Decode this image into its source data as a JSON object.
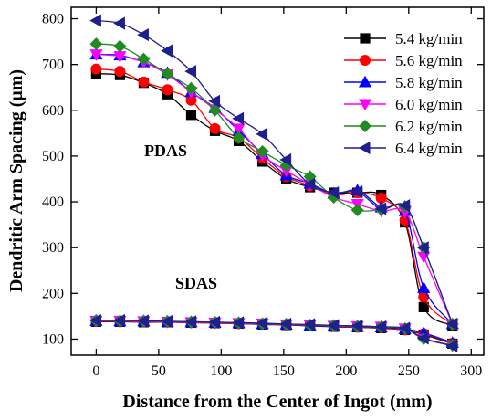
{
  "chart_data": {
    "type": "line",
    "xlabel": "Distance from the Center of Ingot (mm)",
    "ylabel": "Dendritic Arm Spacing (μm)",
    "xlim": [
      -20,
      310
    ],
    "ylim": [
      65,
      825
    ],
    "xticks": [
      0,
      50,
      100,
      150,
      200,
      250,
      300
    ],
    "yticks": [
      100,
      200,
      300,
      400,
      500,
      600,
      700,
      800
    ],
    "grid": false,
    "legend_position": "top-right",
    "annotations": [
      "PDAS",
      "SDAS"
    ],
    "x": [
      0,
      19,
      38,
      57,
      76,
      95,
      114,
      133,
      152,
      171,
      190,
      209,
      228,
      247,
      262,
      285
    ],
    "series": [
      {
        "name": "5.4 kg/min",
        "color": "#000000",
        "marker": "square",
        "pdas": [
          680,
          677,
          660,
          635,
          590,
          555,
          533,
          488,
          450,
          432,
          420,
          420,
          415,
          355,
          170,
          130
        ],
        "sdas": [
          138,
          138,
          137,
          137,
          136,
          135,
          134,
          132,
          131,
          129,
          127,
          126,
          124,
          120,
          110,
          90
        ]
      },
      {
        "name": "5.6 kg/min",
        "color": "#ff0000",
        "marker": "circle",
        "pdas": [
          690,
          685,
          662,
          645,
          622,
          560,
          540,
          495,
          455,
          435,
          415,
          420,
          408,
          360,
          192,
          132
        ],
        "sdas": [
          139,
          138,
          138,
          137,
          136,
          135,
          134,
          133,
          131,
          130,
          128,
          126,
          125,
          120,
          112,
          91
        ]
      },
      {
        "name": "5.8 kg/min",
        "color": "#0000ff",
        "marker": "triangle-up",
        "pdas": [
          722,
          720,
          705,
          682,
          640,
          605,
          555,
          505,
          458,
          440,
          418,
          425,
          388,
          380,
          212,
          133
        ],
        "sdas": [
          140,
          139,
          139,
          138,
          137,
          136,
          135,
          133,
          132,
          130,
          129,
          127,
          126,
          122,
          114,
          92
        ]
      },
      {
        "name": "6.0 kg/min",
        "color": "#ff00ff",
        "marker": "triangle-down",
        "pdas": [
          722,
          718,
          705,
          678,
          640,
          602,
          560,
          502,
          468,
          438,
          410,
          395,
          380,
          378,
          280,
          133
        ],
        "sdas": [
          140,
          140,
          139,
          138,
          137,
          136,
          135,
          134,
          132,
          131,
          129,
          128,
          127,
          123,
          100,
          86
        ]
      },
      {
        "name": "6.2 kg/min",
        "color": "#1e8c1e",
        "marker": "diamond",
        "pdas": [
          745,
          740,
          712,
          680,
          648,
          600,
          540,
          510,
          480,
          455,
          410,
          382,
          383,
          390,
          300,
          133
        ],
        "sdas": [
          141,
          140,
          140,
          139,
          138,
          137,
          136,
          134,
          133,
          131,
          130,
          128,
          127,
          123,
          101,
          87
        ]
      },
      {
        "name": "6.4 kg/min",
        "color": "#1f1f8f",
        "marker": "triangle-left",
        "pdas": [
          796,
          790,
          765,
          730,
          685,
          620,
          582,
          548,
          492,
          438,
          420,
          422,
          385,
          392,
          300,
          133
        ],
        "sdas": [
          141,
          141,
          140,
          139,
          138,
          137,
          136,
          135,
          133,
          132,
          130,
          129,
          127,
          124,
          102,
          85
        ]
      }
    ]
  }
}
